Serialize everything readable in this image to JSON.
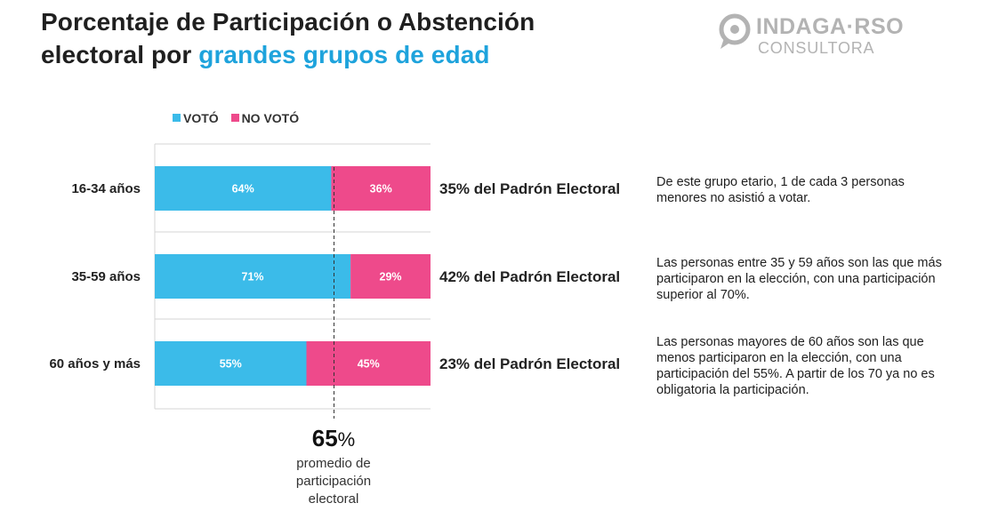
{
  "title": {
    "line1": "Porcentaje de Participación o Abstención",
    "line2_prefix": "electoral por ",
    "line2_highlight": "grandes grupos de edad"
  },
  "logo": {
    "name": "INDAGA·RSO",
    "sub": "CONSULTORA",
    "icon": "speech-bubble-logo-icon"
  },
  "colors": {
    "voto": "#3bbbe9",
    "no_voto": "#ee4a8b",
    "highlight": "#1ea3dc",
    "logo_gray": "#b3b3b3"
  },
  "chart_data": {
    "type": "bar",
    "orientation": "horizontal",
    "stacked": "100%",
    "categories": [
      "16-34 años",
      "35-59 años",
      "60 años y más"
    ],
    "series": [
      {
        "name": "VOTÓ",
        "values": [
          64,
          71,
          55
        ],
        "labels": [
          "64%",
          "71%",
          "55%"
        ]
      },
      {
        "name": "NO VOTÓ",
        "values": [
          36,
          29,
          45
        ],
        "labels": [
          "36%",
          "29%",
          "45%"
        ]
      }
    ],
    "xlim": [
      0,
      100
    ],
    "legend": "top-left",
    "grid": false,
    "padron_labels": [
      "35% del Padrón Electoral",
      "42% del Padrón Electoral",
      "23% del Padrón Electoral"
    ],
    "reference_line": {
      "value": 65,
      "style": "dashed"
    }
  },
  "average": {
    "value": "65",
    "unit": "%",
    "label": "promedio de participación electoral"
  },
  "notes": [
    "De este grupo etario, 1 de cada 3 personas menores no asistió a votar.",
    "Las personas entre 35 y 59 años son las que más participaron en la elección, con una participación superior al 70%.",
    "Las personas mayores de 60 años son las que menos participaron en la elección, con una participación del 55%. A partir de los 70 ya no es obligatoria la participación."
  ]
}
